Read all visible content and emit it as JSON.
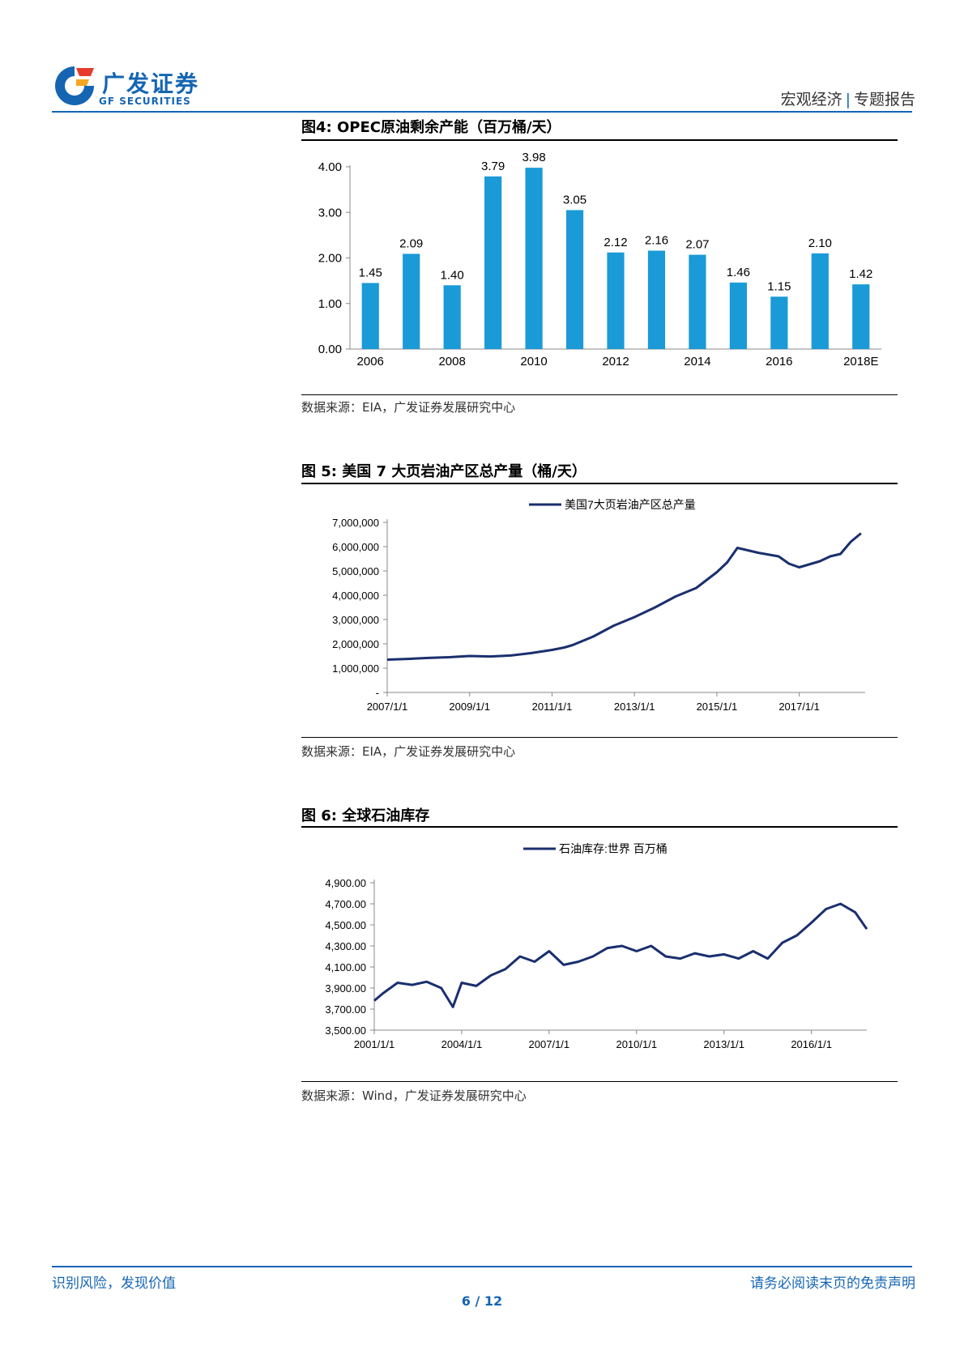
{
  "header": {
    "logo_cn": "广发证券",
    "logo_en": "GF SECURITIES",
    "section": "宏观经济",
    "report_type": "专题报告",
    "brand_color": "#1565b3"
  },
  "figures": [
    {
      "title": "图4: OPEC原油剩余产能（百万桶/天）",
      "source": "数据来源：EIA，广发证券发展研究中心"
    },
    {
      "title": "图 5: 美国 7 大页岩油产区总产量（桶/天）",
      "source": "数据来源：EIA，广发证券发展研究中心"
    },
    {
      "title": "图 6: 全球石油库存",
      "source": "数据来源：Wind，广发证券发展研究中心"
    }
  ],
  "chart_data": [
    {
      "type": "bar",
      "categories": [
        "2006",
        "2007",
        "2008",
        "2009",
        "2010",
        "2011",
        "2012",
        "2013",
        "2014",
        "2015",
        "2016",
        "2017",
        "2018E"
      ],
      "x_tick_labels": [
        "2006",
        "",
        "2008",
        "",
        "2010",
        "",
        "2012",
        "",
        "2014",
        "",
        "2016",
        "",
        "2018E"
      ],
      "values": [
        1.45,
        2.09,
        1.4,
        3.79,
        3.98,
        3.05,
        2.12,
        2.16,
        2.07,
        1.46,
        1.15,
        2.1,
        1.42
      ],
      "data_labels": [
        "1.45",
        "2.09",
        "1.40",
        "3.79",
        "3.98",
        "3.05",
        "2.12",
        "2.16",
        "2.07",
        "1.46",
        "1.15",
        "2.10",
        "1.42"
      ],
      "ylim": [
        0,
        4
      ],
      "y_ticks": [
        "0.00",
        "1.00",
        "2.00",
        "3.00",
        "4.00"
      ],
      "bar_color": "#1a9ad7",
      "grid": false
    },
    {
      "type": "line",
      "legend": "美国7大页岩油产区总产量",
      "legend_position": "top-center",
      "x_ticks": [
        "2007/1/1",
        "2009/1/1",
        "2011/1/1",
        "2013/1/1",
        "2015/1/1",
        "2017/1/1"
      ],
      "y_ticks": [
        "-",
        "1,000,000",
        "2,000,000",
        "3,000,000",
        "4,000,000",
        "5,000,000",
        "6,000,000",
        "7,000,000"
      ],
      "ylim": [
        0,
        7000000
      ],
      "xlim": [
        2007.0,
        2018.6
      ],
      "line_color": "#1a2f6e",
      "series": [
        {
          "x": [
            2007.0,
            2007.5,
            2008.0,
            2008.5,
            2009.0,
            2009.5,
            2010.0,
            2010.5,
            2011.0,
            2011.3,
            2011.5,
            2012.0,
            2012.5,
            2013.0,
            2013.5,
            2014.0,
            2014.5,
            2015.0,
            2015.25,
            2015.5,
            2016.0,
            2016.5,
            2016.75,
            2017.0,
            2017.5,
            2017.75,
            2018.0,
            2018.25,
            2018.5
          ],
          "y": [
            1350000,
            1380000,
            1420000,
            1450000,
            1500000,
            1480000,
            1520000,
            1620000,
            1750000,
            1850000,
            1950000,
            2300000,
            2750000,
            3100000,
            3500000,
            3950000,
            4300000,
            4950000,
            5350000,
            5950000,
            5750000,
            5600000,
            5300000,
            5150000,
            5400000,
            5600000,
            5700000,
            6200000,
            6550000
          ]
        }
      ],
      "grid": false
    },
    {
      "type": "line",
      "legend": "石油库存:世界 百万桶",
      "legend_position": "top-center",
      "x_ticks": [
        "2001/1/1",
        "2004/1/1",
        "2007/1/1",
        "2010/1/1",
        "2013/1/1",
        "2016/1/1"
      ],
      "y_ticks": [
        "3,500.00",
        "3,700.00",
        "3,900.00",
        "4,100.00",
        "4,300.00",
        "4,500.00",
        "4,700.00",
        "4,900.00"
      ],
      "ylim": [
        3500,
        4900
      ],
      "xlim": [
        2001.0,
        2017.9
      ],
      "line_color": "#1a2f6e",
      "series": [
        {
          "x": [
            2001.0,
            2001.3,
            2001.8,
            2002.3,
            2002.8,
            2003.3,
            2003.7,
            2004.0,
            2004.5,
            2005.0,
            2005.5,
            2006.0,
            2006.5,
            2007.0,
            2007.5,
            2008.0,
            2008.5,
            2009.0,
            2009.5,
            2010.0,
            2010.5,
            2011.0,
            2011.5,
            2012.0,
            2012.5,
            2013.0,
            2013.5,
            2014.0,
            2014.5,
            2015.0,
            2015.5,
            2016.0,
            2016.5,
            2017.0,
            2017.5,
            2017.9
          ],
          "y": [
            3780,
            3850,
            3950,
            3930,
            3960,
            3900,
            3720,
            3950,
            3920,
            4020,
            4080,
            4200,
            4150,
            4250,
            4120,
            4150,
            4200,
            4280,
            4300,
            4250,
            4300,
            4200,
            4180,
            4230,
            4200,
            4220,
            4180,
            4250,
            4180,
            4330,
            4400,
            4520,
            4650,
            4700,
            4620,
            4460
          ]
        }
      ],
      "grid": false
    }
  ],
  "footer": {
    "left": "识别风险，发现价值",
    "right": "请务必阅读末页的免责声明",
    "page": "6 / 12"
  }
}
